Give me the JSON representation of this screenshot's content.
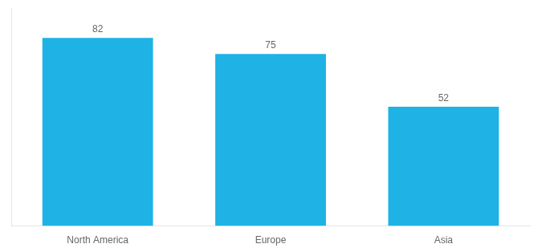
{
  "chart_data": {
    "type": "bar",
    "categories": [
      "North America",
      "Europe",
      "Asia"
    ],
    "values": [
      82,
      75,
      52
    ],
    "color": "#1eb2e5",
    "ylim": [
      0,
      95
    ],
    "grid": false,
    "data_labels": true,
    "tick_labels": "x"
  }
}
